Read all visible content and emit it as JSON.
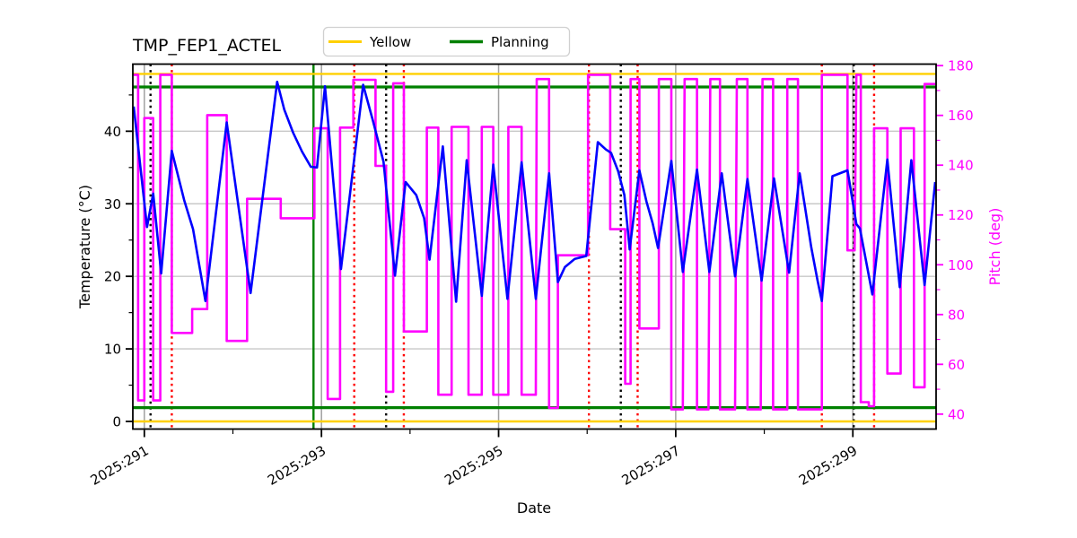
{
  "title": "TMP_FEP1_ACTEL",
  "colors": {
    "background": "#ffffff",
    "temperature_line": "#0000ff",
    "pitch_line": "#ff00ff",
    "yellow_limit": "#ffd000",
    "planning_limit": "#008000",
    "red_event_line": "#ff0000",
    "black_event_line": "#000000",
    "grid_horizontal": "#c8c8c8",
    "grid_vertical": "#a0a0a0",
    "frame": "#000000",
    "legend_border": "#d0d0d0"
  },
  "chart_data": {
    "type": "line",
    "title": "TMP_FEP1_ACTEL",
    "xlabel": "Date",
    "ylabel_left": "Temperature (°C)",
    "ylabel_right": "Pitch (deg)",
    "legend": [
      {
        "label": "Yellow",
        "color": "#ffd000"
      },
      {
        "label": "Planning",
        "color": "#008000"
      }
    ],
    "xlim": [
      290.87,
      299.94
    ],
    "ylim_temp": [
      -1.05,
      49.25
    ],
    "ylim_pitch": [
      34.0,
      180.6
    ],
    "x_ticks": [
      {
        "value": 291,
        "label": "2025:291"
      },
      {
        "value": 293,
        "label": "2025:293"
      },
      {
        "value": 295,
        "label": "2025:295"
      },
      {
        "value": 297,
        "label": "2025:297"
      },
      {
        "value": 299,
        "label": "2025:299"
      }
    ],
    "x_minor_ticks": [
      292,
      294,
      296,
      298
    ],
    "y_ticks_temp": [
      0,
      10,
      20,
      30,
      40
    ],
    "y_minor_ticks_temp": [
      5,
      15,
      25,
      35,
      45
    ],
    "y_ticks_pitch": [
      40,
      60,
      80,
      100,
      120,
      140,
      160,
      180
    ],
    "y_minor_ticks_pitch": [
      50,
      70,
      90,
      110,
      130,
      150,
      170
    ],
    "grid_x": [
      291,
      293,
      295,
      297,
      299
    ],
    "grid_y_temp": [
      0,
      10,
      20,
      30,
      40
    ],
    "limit_lines": [
      {
        "name": "yellow-upper-limit",
        "axis": "temp",
        "value": 47.9,
        "color": "#ffd000",
        "width": 2.4
      },
      {
        "name": "yellow-lower-limit",
        "axis": "temp",
        "value": 0.0,
        "color": "#ffd000",
        "width": 2.4
      },
      {
        "name": "planning-upper-limit",
        "axis": "temp",
        "value": 46.1,
        "color": "#008000",
        "width": 3.2
      },
      {
        "name": "planning-lower-limit",
        "axis": "temp",
        "value": 1.9,
        "color": "#008000",
        "width": 3.2
      }
    ],
    "vlines": [
      {
        "name": "green-solid-line",
        "x": 292.91,
        "color": "#008000",
        "style": "solid",
        "width": 2.4
      },
      {
        "name": "black-dotted-line",
        "x": 291.07,
        "color": "#000000",
        "style": "dotted",
        "width": 2.4
      },
      {
        "name": "black-dotted-line",
        "x": 293.73,
        "color": "#000000",
        "style": "dotted",
        "width": 2.4
      },
      {
        "name": "black-dotted-line",
        "x": 296.38,
        "color": "#000000",
        "style": "dotted",
        "width": 2.4
      },
      {
        "name": "black-dotted-line",
        "x": 299.01,
        "color": "#000000",
        "style": "dotted",
        "width": 2.4
      },
      {
        "name": "red-dotted-line",
        "x": 291.31,
        "color": "#ff0000",
        "style": "dotted",
        "width": 2.4
      },
      {
        "name": "red-dotted-line",
        "x": 293.37,
        "color": "#ff0000",
        "style": "dotted",
        "width": 2.4
      },
      {
        "name": "red-dotted-line",
        "x": 293.93,
        "color": "#ff0000",
        "style": "dotted",
        "width": 2.4
      },
      {
        "name": "red-dotted-line",
        "x": 296.02,
        "color": "#ff0000",
        "style": "dotted",
        "width": 2.4
      },
      {
        "name": "red-dotted-line",
        "x": 296.57,
        "color": "#ff0000",
        "style": "dotted",
        "width": 2.4
      },
      {
        "name": "red-dotted-line",
        "x": 298.65,
        "color": "#ff0000",
        "style": "dotted",
        "width": 2.4
      },
      {
        "name": "red-dotted-line",
        "x": 299.24,
        "color": "#ff0000",
        "style": "dotted",
        "width": 2.4
      }
    ],
    "series": [
      {
        "name": "pitch",
        "axis": "pitch",
        "color": "#ff00ff",
        "width": 2.6,
        "points": [
          [
            290.88,
            176.3
          ],
          [
            290.93,
            176.3
          ],
          [
            290.93,
            45.5
          ],
          [
            291.0,
            45.5
          ],
          [
            291.0,
            158.9
          ],
          [
            291.1,
            158.9
          ],
          [
            291.1,
            45.5
          ],
          [
            291.18,
            45.5
          ],
          [
            291.18,
            176.3
          ],
          [
            291.31,
            176.3
          ],
          [
            291.31,
            72.6
          ],
          [
            291.54,
            72.6
          ],
          [
            291.54,
            82.2
          ],
          [
            291.71,
            82.2
          ],
          [
            291.71,
            160.1
          ],
          [
            291.93,
            160.1
          ],
          [
            291.93,
            69.4
          ],
          [
            292.16,
            69.4
          ],
          [
            292.16,
            126.5
          ],
          [
            292.54,
            126.5
          ],
          [
            292.54,
            118.7
          ],
          [
            292.92,
            118.7
          ],
          [
            292.92,
            154.8
          ],
          [
            293.07,
            154.8
          ],
          [
            293.07,
            46.1
          ],
          [
            293.21,
            46.1
          ],
          [
            293.21,
            155.1
          ],
          [
            293.36,
            155.1
          ],
          [
            293.36,
            174.3
          ],
          [
            293.61,
            174.3
          ],
          [
            293.61,
            139.7
          ],
          [
            293.73,
            139.7
          ],
          [
            293.73,
            49.0
          ],
          [
            293.81,
            49.0
          ],
          [
            293.81,
            172.9
          ],
          [
            293.93,
            172.9
          ],
          [
            293.93,
            73.2
          ],
          [
            294.19,
            73.2
          ],
          [
            294.19,
            155.1
          ],
          [
            294.32,
            155.1
          ],
          [
            294.32,
            47.8
          ],
          [
            294.47,
            47.8
          ],
          [
            294.47,
            155.4
          ],
          [
            294.66,
            155.4
          ],
          [
            294.66,
            47.8
          ],
          [
            294.81,
            47.8
          ],
          [
            294.81,
            155.4
          ],
          [
            294.94,
            155.4
          ],
          [
            294.94,
            47.8
          ],
          [
            295.11,
            47.8
          ],
          [
            295.11,
            155.4
          ],
          [
            295.26,
            155.4
          ],
          [
            295.26,
            47.8
          ],
          [
            295.42,
            47.8
          ],
          [
            295.43,
            174.6
          ],
          [
            295.57,
            174.6
          ],
          [
            295.57,
            42.5
          ],
          [
            295.67,
            42.5
          ],
          [
            295.67,
            103.8
          ],
          [
            296.01,
            103.8
          ],
          [
            296.01,
            176.3
          ],
          [
            296.26,
            176.3
          ],
          [
            296.26,
            114.3
          ],
          [
            296.43,
            114.3
          ],
          [
            296.43,
            52.2
          ],
          [
            296.49,
            52.2
          ],
          [
            296.49,
            174.6
          ],
          [
            296.59,
            174.6
          ],
          [
            296.59,
            74.4
          ],
          [
            296.81,
            74.4
          ],
          [
            296.81,
            174.6
          ],
          [
            296.95,
            174.6
          ],
          [
            296.95,
            41.9
          ],
          [
            297.08,
            41.9
          ],
          [
            297.1,
            174.6
          ],
          [
            297.24,
            174.6
          ],
          [
            297.24,
            41.9
          ],
          [
            297.37,
            41.9
          ],
          [
            297.39,
            174.6
          ],
          [
            297.5,
            174.6
          ],
          [
            297.5,
            41.9
          ],
          [
            297.67,
            41.9
          ],
          [
            297.69,
            174.6
          ],
          [
            297.81,
            174.6
          ],
          [
            297.81,
            41.9
          ],
          [
            297.96,
            41.9
          ],
          [
            297.98,
            174.6
          ],
          [
            298.1,
            174.6
          ],
          [
            298.1,
            41.9
          ],
          [
            298.26,
            41.9
          ],
          [
            298.26,
            174.6
          ],
          [
            298.38,
            174.6
          ],
          [
            298.38,
            41.9
          ],
          [
            298.65,
            41.9
          ],
          [
            298.65,
            176.3
          ],
          [
            298.94,
            176.3
          ],
          [
            298.94,
            105.8
          ],
          [
            299.02,
            105.8
          ],
          [
            299.04,
            176.3
          ],
          [
            299.09,
            176.3
          ],
          [
            299.09,
            44.8
          ],
          [
            299.18,
            44.8
          ],
          [
            299.18,
            43.2
          ],
          [
            299.24,
            43.2
          ],
          [
            299.24,
            154.8
          ],
          [
            299.39,
            154.8
          ],
          [
            299.39,
            56.3
          ],
          [
            299.54,
            56.3
          ],
          [
            299.54,
            154.8
          ],
          [
            299.69,
            154.8
          ],
          [
            299.69,
            50.8
          ],
          [
            299.81,
            50.8
          ],
          [
            299.81,
            172.6
          ],
          [
            299.93,
            172.6
          ]
        ]
      },
      {
        "name": "temperature",
        "axis": "temp",
        "color": "#0000ff",
        "width": 2.6,
        "points": [
          [
            290.88,
            43.4
          ],
          [
            290.93,
            37.9
          ],
          [
            291.03,
            26.8
          ],
          [
            291.1,
            31.4
          ],
          [
            291.19,
            20.4
          ],
          [
            291.31,
            37.3
          ],
          [
            291.45,
            30.5
          ],
          [
            291.55,
            26.5
          ],
          [
            291.69,
            16.6
          ],
          [
            291.93,
            41.2
          ],
          [
            292.2,
            17.7
          ],
          [
            292.5,
            46.8
          ],
          [
            292.58,
            43.0
          ],
          [
            292.68,
            39.8
          ],
          [
            292.78,
            37.2
          ],
          [
            292.88,
            35.1
          ],
          [
            292.95,
            35.0
          ],
          [
            293.04,
            46.2
          ],
          [
            293.22,
            21.0
          ],
          [
            293.47,
            46.4
          ],
          [
            293.58,
            41.5
          ],
          [
            293.7,
            35.8
          ],
          [
            293.83,
            20.1
          ],
          [
            293.95,
            33.0
          ],
          [
            294.07,
            31.2
          ],
          [
            294.16,
            28.0
          ],
          [
            294.22,
            22.3
          ],
          [
            294.37,
            37.9
          ],
          [
            294.52,
            16.5
          ],
          [
            294.64,
            36.0
          ],
          [
            294.81,
            17.3
          ],
          [
            294.94,
            35.4
          ],
          [
            295.1,
            16.9
          ],
          [
            295.26,
            35.7
          ],
          [
            295.42,
            16.9
          ],
          [
            295.57,
            34.2
          ],
          [
            295.67,
            19.2
          ],
          [
            295.75,
            21.3
          ],
          [
            295.86,
            22.4
          ],
          [
            295.99,
            22.8
          ],
          [
            296.12,
            38.5
          ],
          [
            296.21,
            37.5
          ],
          [
            296.27,
            37.0
          ],
          [
            296.35,
            34.5
          ],
          [
            296.42,
            31.2
          ],
          [
            296.48,
            23.7
          ],
          [
            296.59,
            34.6
          ],
          [
            296.67,
            30.3
          ],
          [
            296.74,
            27.3
          ],
          [
            296.8,
            23.9
          ],
          [
            296.95,
            35.9
          ],
          [
            297.08,
            20.6
          ],
          [
            297.24,
            34.7
          ],
          [
            297.38,
            20.6
          ],
          [
            297.52,
            34.2
          ],
          [
            297.67,
            20.0
          ],
          [
            297.81,
            33.4
          ],
          [
            297.97,
            19.4
          ],
          [
            298.11,
            33.5
          ],
          [
            298.28,
            20.5
          ],
          [
            298.4,
            34.2
          ],
          [
            298.46,
            29.5
          ],
          [
            298.53,
            24.0
          ],
          [
            298.6,
            19.5
          ],
          [
            298.65,
            16.6
          ],
          [
            298.77,
            33.8
          ],
          [
            298.94,
            34.6
          ],
          [
            299.04,
            27.2
          ],
          [
            299.08,
            26.6
          ],
          [
            299.22,
            17.5
          ],
          [
            299.39,
            36.1
          ],
          [
            299.53,
            18.5
          ],
          [
            299.66,
            36.0
          ],
          [
            299.81,
            18.8
          ],
          [
            299.93,
            33.0
          ]
        ]
      }
    ]
  }
}
